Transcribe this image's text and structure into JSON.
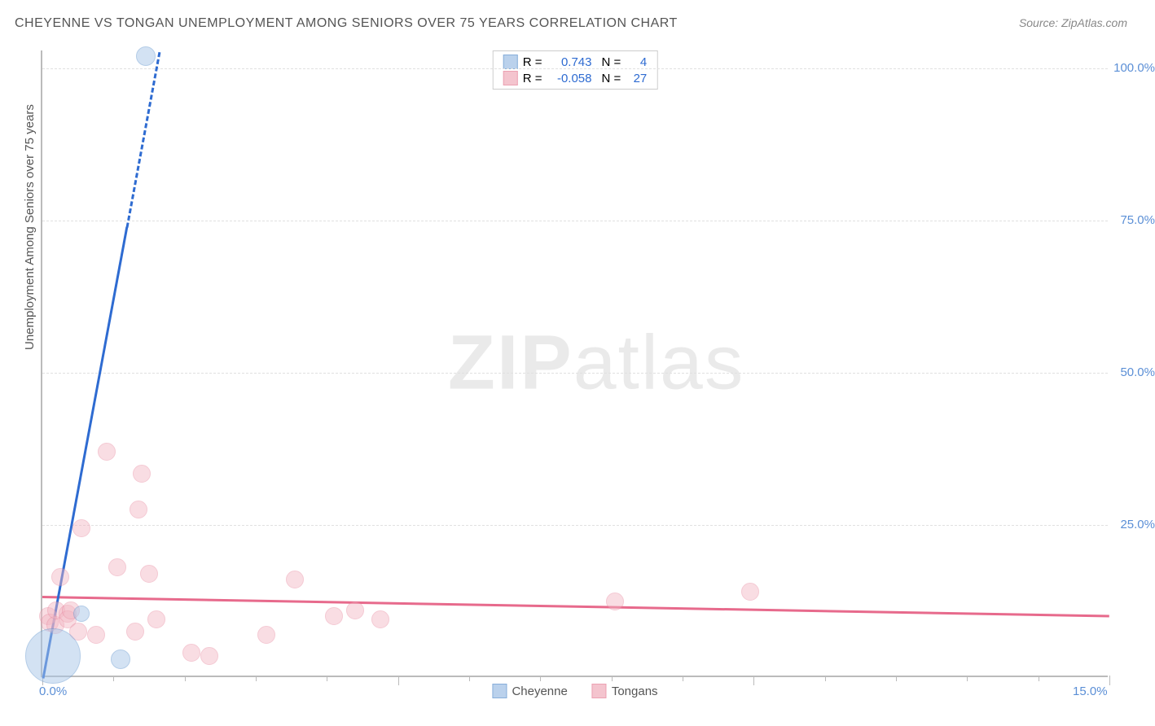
{
  "title": "CHEYENNE VS TONGAN UNEMPLOYMENT AMONG SENIORS OVER 75 YEARS CORRELATION CHART",
  "source": "Source: ZipAtlas.com",
  "ylabel": "Unemployment Among Seniors over 75 years",
  "watermark_bold": "ZIP",
  "watermark_light": "atlas",
  "chart": {
    "type": "scatter",
    "xlim": [
      0,
      15
    ],
    "ylim": [
      0,
      103
    ],
    "background_color": "#ffffff",
    "grid_color": "#e0e0e0",
    "axis_color": "#bbbbbb",
    "tick_label_color": "#5b8fd6",
    "y_ticks": [
      25,
      50,
      75,
      100
    ],
    "y_tick_labels": [
      "25.0%",
      "50.0%",
      "75.0%",
      "100.0%"
    ],
    "x_ticks_major": [
      0,
      5,
      10,
      15
    ],
    "x_tick_labels": [
      "0.0%",
      "15.0%"
    ],
    "x_tick_label_positions": [
      0,
      15
    ],
    "x_ticks_minor": [
      1,
      2,
      3,
      4,
      6,
      7,
      8,
      9,
      11,
      12,
      13,
      14
    ]
  },
  "series": {
    "cheyenne": {
      "label": "Cheyenne",
      "fill_color": "#a9c6e8",
      "stroke_color": "#6a9bd1",
      "fill_opacity": 0.5,
      "point_radius": 11,
      "points": [
        {
          "x": 0.15,
          "y": 3.5,
          "r": 34
        },
        {
          "x": 1.1,
          "y": 3.0,
          "r": 12
        },
        {
          "x": 0.55,
          "y": 10.5,
          "r": 10
        },
        {
          "x": 1.45,
          "y": 102.0,
          "r": 12
        }
      ],
      "trend": {
        "slope": 63.0,
        "intercept": -1.0,
        "color": "#2e6bd1",
        "width": 3
      },
      "R": "0.743",
      "N": "4"
    },
    "tongans": {
      "label": "Tongans",
      "fill_color": "#f2b6c3",
      "stroke_color": "#e88aa0",
      "fill_opacity": 0.45,
      "point_radius": 11,
      "points": [
        {
          "x": 0.08,
          "y": 10.0
        },
        {
          "x": 0.1,
          "y": 9.0
        },
        {
          "x": 0.18,
          "y": 8.5
        },
        {
          "x": 0.2,
          "y": 11.0
        },
        {
          "x": 0.25,
          "y": 16.5
        },
        {
          "x": 0.35,
          "y": 10.5
        },
        {
          "x": 0.35,
          "y": 9.5
        },
        {
          "x": 0.4,
          "y": 11.0
        },
        {
          "x": 0.5,
          "y": 7.5
        },
        {
          "x": 0.55,
          "y": 24.5
        },
        {
          "x": 0.75,
          "y": 7.0
        },
        {
          "x": 0.9,
          "y": 37.0
        },
        {
          "x": 1.05,
          "y": 18.0
        },
        {
          "x": 1.3,
          "y": 7.5
        },
        {
          "x": 1.35,
          "y": 27.5
        },
        {
          "x": 1.4,
          "y": 33.5
        },
        {
          "x": 1.5,
          "y": 17.0
        },
        {
          "x": 1.6,
          "y": 9.5
        },
        {
          "x": 2.1,
          "y": 4.0
        },
        {
          "x": 2.35,
          "y": 3.5
        },
        {
          "x": 3.15,
          "y": 7.0
        },
        {
          "x": 3.55,
          "y": 16.0
        },
        {
          "x": 4.1,
          "y": 10.0
        },
        {
          "x": 4.4,
          "y": 11.0
        },
        {
          "x": 4.75,
          "y": 9.5
        },
        {
          "x": 8.05,
          "y": 12.5
        },
        {
          "x": 9.95,
          "y": 14.0
        }
      ],
      "trend": {
        "slope": -0.21,
        "intercept": 13.4,
        "color": "#e76a8c",
        "width": 2.5
      },
      "R": "-0.058",
      "N": "27"
    }
  },
  "legend_top": {
    "R_label": "R =",
    "N_label": "N ="
  }
}
